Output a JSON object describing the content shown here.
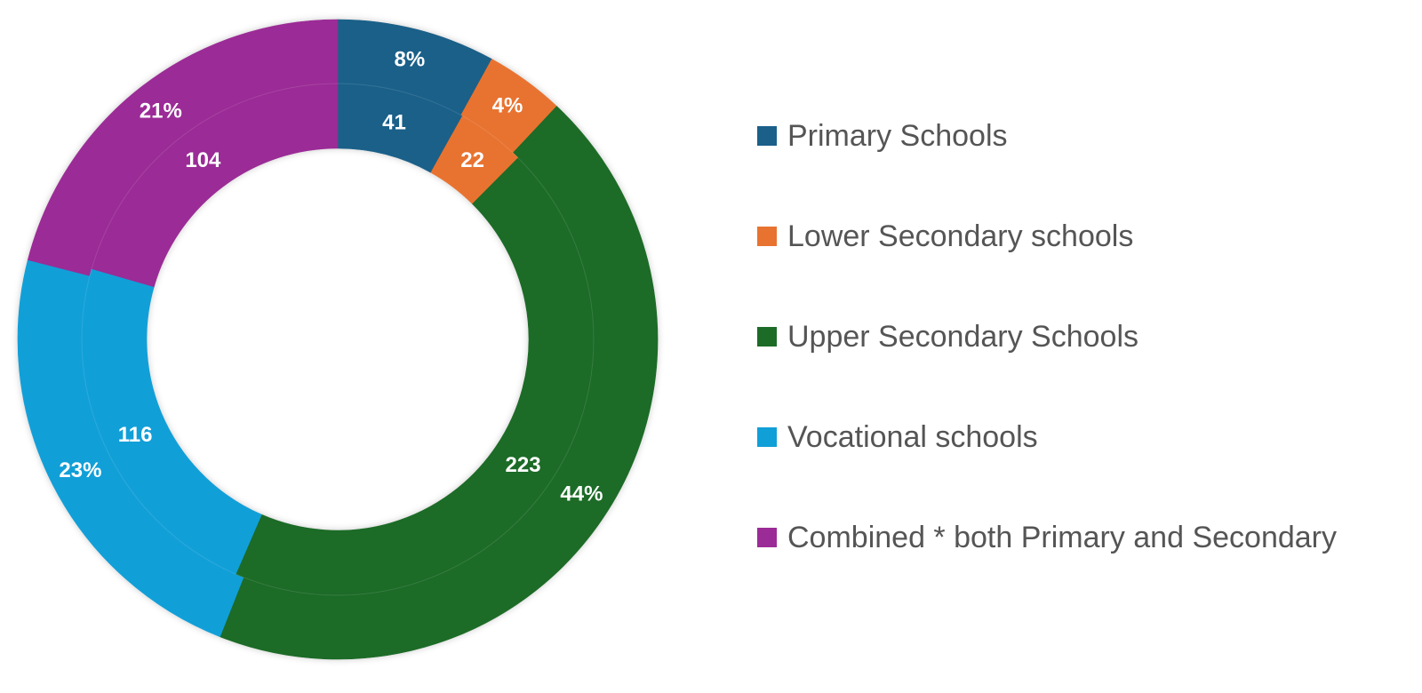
{
  "chart_data": {
    "type": "pie",
    "variant": "nested-donut",
    "title": "",
    "legend_position": "right",
    "categories": [
      "Primary Schools",
      "Lower Secondary schools",
      "Upper Secondary Schools",
      "Vocational schools",
      "Combined * both Primary and Secondary"
    ],
    "colors": [
      "#1a6089",
      "#e87330",
      "#1c6b27",
      "#119fd8",
      "#9b2b96"
    ],
    "series": [
      {
        "ring": "outer",
        "values": [
          8,
          4,
          44,
          23,
          21
        ],
        "labels": [
          "8%",
          "4%",
          "44%",
          "23%",
          "21%"
        ]
      },
      {
        "ring": "inner",
        "values": [
          41,
          22,
          223,
          116,
          104
        ],
        "labels": [
          "41",
          "22",
          "223",
          "116",
          "104"
        ]
      }
    ]
  }
}
